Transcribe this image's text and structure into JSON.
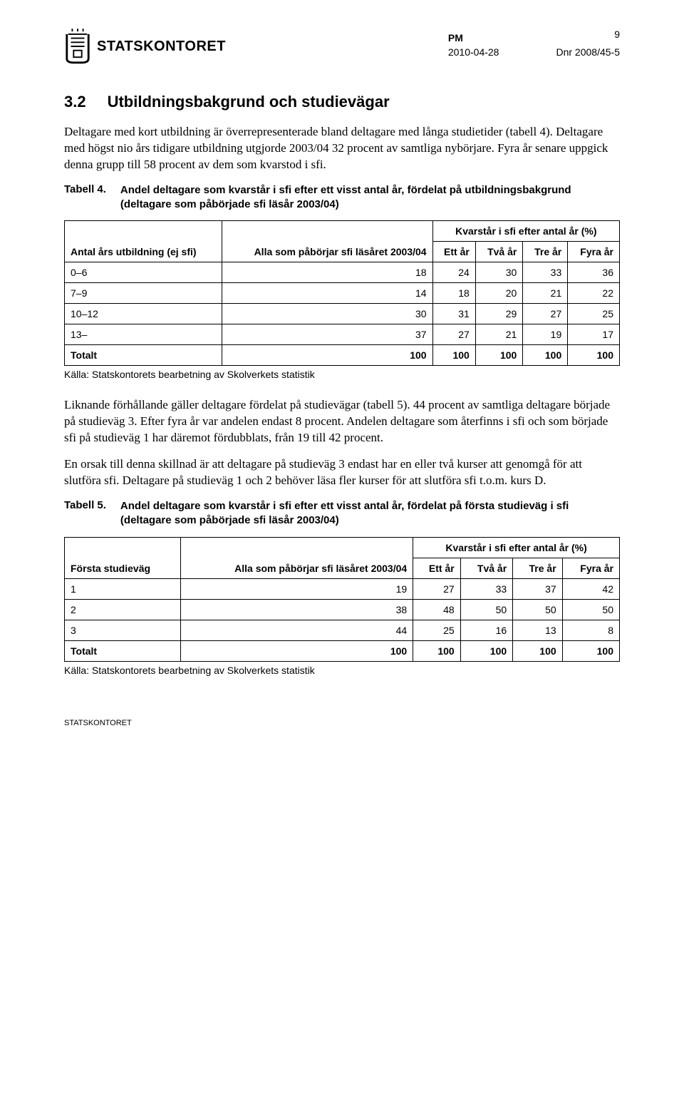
{
  "header": {
    "logo_text": "STATSKONTORET",
    "pm_label": "PM",
    "date": "2010-04-28",
    "dnr": "Dnr 2008/45-5",
    "page_number": "9"
  },
  "section": {
    "number": "3.2",
    "title": "Utbildningsbakgrund och studievägar"
  },
  "paragraphs": {
    "p1": "Deltagare med kort utbildning är överrepresenterade bland deltagare med långa studietider (tabell 4). Deltagare med högst nio års tidigare utbildning utgjorde 2003/04 32 procent av samtliga nybörjare. Fyra år senare uppgick denna grupp till 58 procent av dem som kvarstod i sfi.",
    "p2": "Liknande förhållande gäller deltagare fördelat på studievägar (tabell 5). 44 procent av samtliga deltagare började på studieväg 3. Efter fyra år var andelen endast 8 procent. Andelen deltagare som återfinns i sfi och som började sfi på studieväg 1 har däremot fördubblats, från 19 till 42 procent.",
    "p3": "En orsak till denna skillnad är att deltagare på studieväg 3 endast har en eller två kurser att genomgå för att slutföra sfi. Deltagare på studieväg 1 och 2 behöver läsa fler kurser för att slutföra sfi t.o.m. kurs D."
  },
  "table4": {
    "label": "Tabell 4.",
    "title": "Andel deltagare som kvarstår i sfi efter ett visst antal år, fördelat på utbildningsbakgrund (deltagare som påbörjade sfi läsår 2003/04)",
    "col1_header": "Antal års utbildning (ej sfi)",
    "col2_header": "Alla som påbörjar sfi läsåret 2003/04",
    "span_header": "Kvarstår i sfi efter antal år (%)",
    "sub_headers": {
      "c1": "Ett år",
      "c2": "Två år",
      "c3": "Tre år",
      "c4": "Fyra år"
    },
    "rows": [
      {
        "label": "0–6",
        "v": [
          "18",
          "24",
          "30",
          "33",
          "36"
        ]
      },
      {
        "label": "7–9",
        "v": [
          "14",
          "18",
          "20",
          "21",
          "22"
        ]
      },
      {
        "label": "10–12",
        "v": [
          "30",
          "31",
          "29",
          "27",
          "25"
        ]
      },
      {
        "label": "13–",
        "v": [
          "37",
          "27",
          "21",
          "19",
          "17"
        ]
      },
      {
        "label": "Totalt",
        "v": [
          "100",
          "100",
          "100",
          "100",
          "100"
        ]
      }
    ],
    "source": "Källa: Statskontorets bearbetning av Skolverkets statistik"
  },
  "table5": {
    "label": "Tabell 5.",
    "title": "Andel deltagare som kvarstår i sfi efter ett visst antal år, fördelat på första studieväg i sfi (deltagare som påbörjade sfi läsår 2003/04)",
    "col1_header": "Första studieväg",
    "col2_header": "Alla som påbörjar sfi läsåret 2003/04",
    "span_header": "Kvarstår i sfi efter antal år (%)",
    "sub_headers": {
      "c1": "Ett år",
      "c2": "Två år",
      "c3": "Tre år",
      "c4": "Fyra år"
    },
    "rows": [
      {
        "label": "1",
        "v": [
          "19",
          "27",
          "33",
          "37",
          "42"
        ]
      },
      {
        "label": "2",
        "v": [
          "38",
          "48",
          "50",
          "50",
          "50"
        ]
      },
      {
        "label": "3",
        "v": [
          "44",
          "25",
          "16",
          "13",
          "8"
        ]
      },
      {
        "label": "Totalt",
        "v": [
          "100",
          "100",
          "100",
          "100",
          "100"
        ]
      }
    ],
    "source": "Källa: Statskontorets bearbetning av Skolverkets statistik"
  },
  "footer": {
    "text": "STATSKONTORET"
  }
}
